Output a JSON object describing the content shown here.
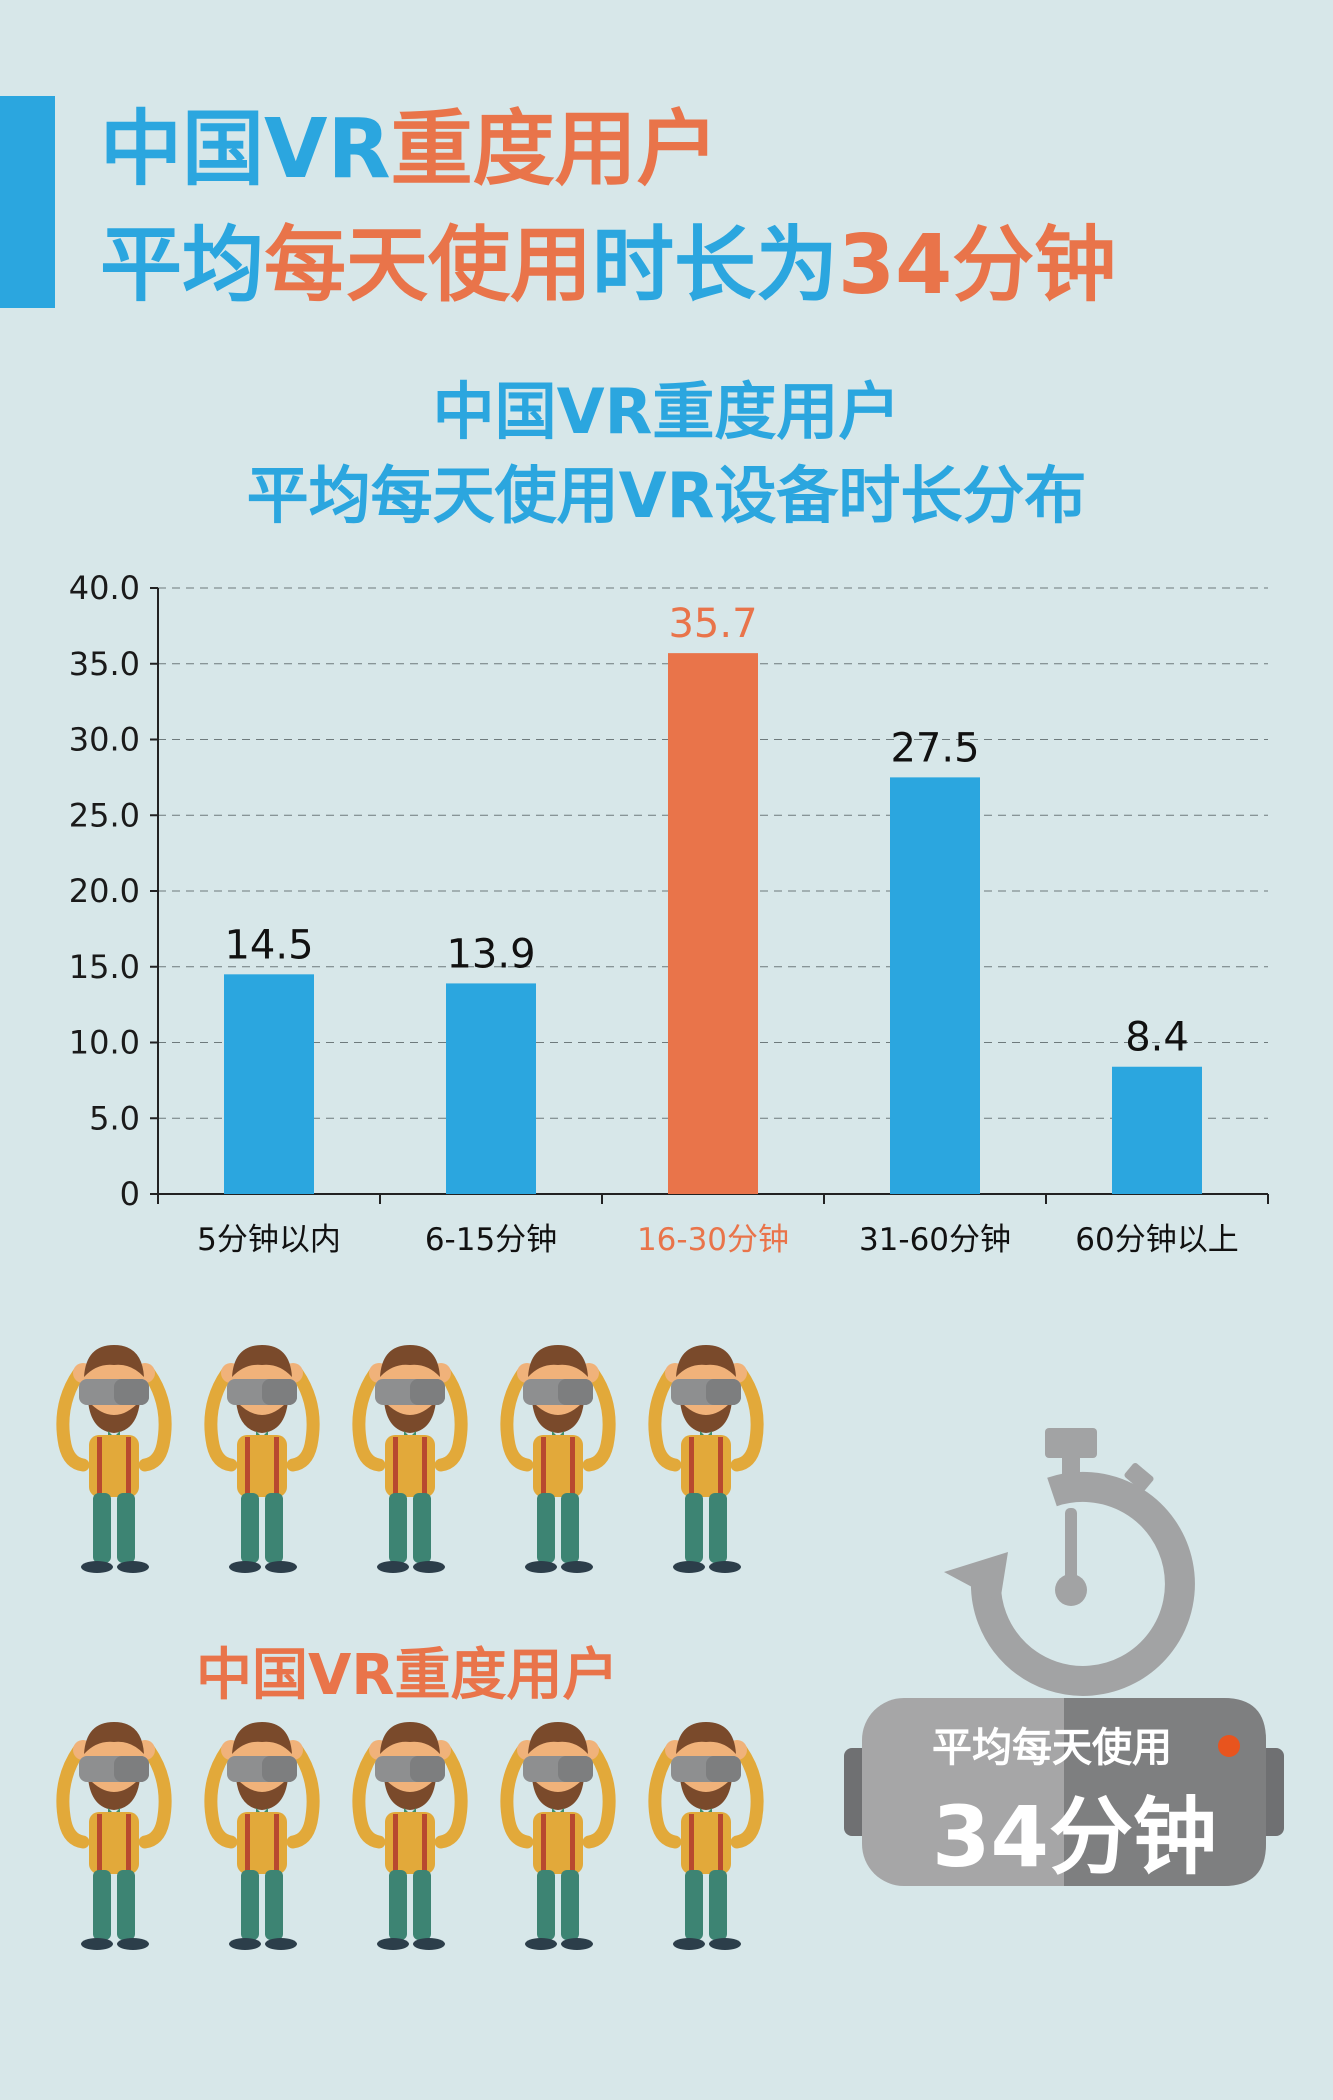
{
  "headline": {
    "line1": {
      "blue": "中国VR",
      "orange": "重度用户"
    },
    "line2": {
      "blue1": "平均",
      "orange1": "每天使用",
      "blue2": "时长为",
      "orange2": "34分钟"
    }
  },
  "chart_title": {
    "line1": "中国VR重度用户",
    "line2": "平均每天使用VR设备时长分布"
  },
  "chart_data": {
    "type": "bar",
    "categories": [
      "5分钟以内",
      "6-15分钟",
      "16-30分钟",
      "31-60分钟",
      "60分钟以上"
    ],
    "values": [
      14.5,
      13.9,
      35.7,
      27.5,
      8.4
    ],
    "value_labels": [
      "14.5",
      "13.9",
      "35.7",
      "27.5",
      "8.4"
    ],
    "highlight_index": 2,
    "ylim": [
      0,
      40
    ],
    "yticks": [
      "0",
      "5.0",
      "10.0",
      "15.0",
      "20.0",
      "25.0",
      "30.0",
      "35.0",
      "40.0"
    ],
    "grid": true,
    "title": "",
    "xlabel": "",
    "ylabel": "",
    "colors": {
      "bar": "#2ba6df",
      "highlight": "#e9744a"
    }
  },
  "users_label": "中国VR重度用户",
  "timer": {
    "line1": "平均每天使用",
    "line2": "34分钟",
    "icon": "stopwatch-icon"
  }
}
